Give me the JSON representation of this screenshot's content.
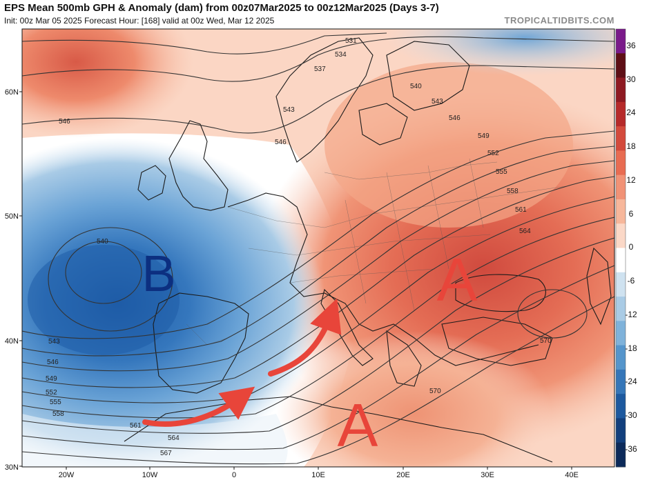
{
  "header": {
    "title": "EPS Mean 500mb GPH & Anomaly (dam) from 00z07Mar2025 to 00z12Mar2025 (Days 3-7)",
    "subtitle": "Init: 00z Mar 05 2025   Forecast Hour: [168]   valid at 00z Wed, Mar 12 2025",
    "brand": "TROPICALTIDBITS.COM"
  },
  "axes": {
    "lat_labels": [
      "60N",
      "50N",
      "40N",
      "30N"
    ],
    "lon_labels": [
      "20W",
      "10W",
      "0",
      "10E",
      "20E",
      "30E",
      "40E"
    ]
  },
  "colorbar": {
    "labels": [
      "36",
      "30",
      "24",
      "18",
      "12",
      "6",
      "0",
      "-6",
      "-12",
      "-18",
      "-24",
      "-30",
      "-36"
    ],
    "colors": [
      "#7a1a8a",
      "#5e0f16",
      "#8e1a22",
      "#b62a2a",
      "#d34a3c",
      "#e86c52",
      "#f19276",
      "#f7b79b",
      "#fbd8c7",
      "#ffffff",
      "#cfe2f0",
      "#a9cbe5",
      "#7fb2da",
      "#5595cb",
      "#3576b8",
      "#1d599f",
      "#123f7d",
      "#0c2a5a"
    ]
  },
  "contour_labels": [
    "531",
    "534",
    "537",
    "540",
    "543",
    "546",
    "549",
    "552",
    "555",
    "558",
    "561",
    "564",
    "567",
    "570",
    "546",
    "540",
    "543",
    "546",
    "549",
    "552",
    "555",
    "558",
    "561",
    "564",
    "567",
    "570"
  ],
  "annotations": {
    "low_letter": "B",
    "high_letter_east": "A",
    "high_letter_south": "A"
  }
}
